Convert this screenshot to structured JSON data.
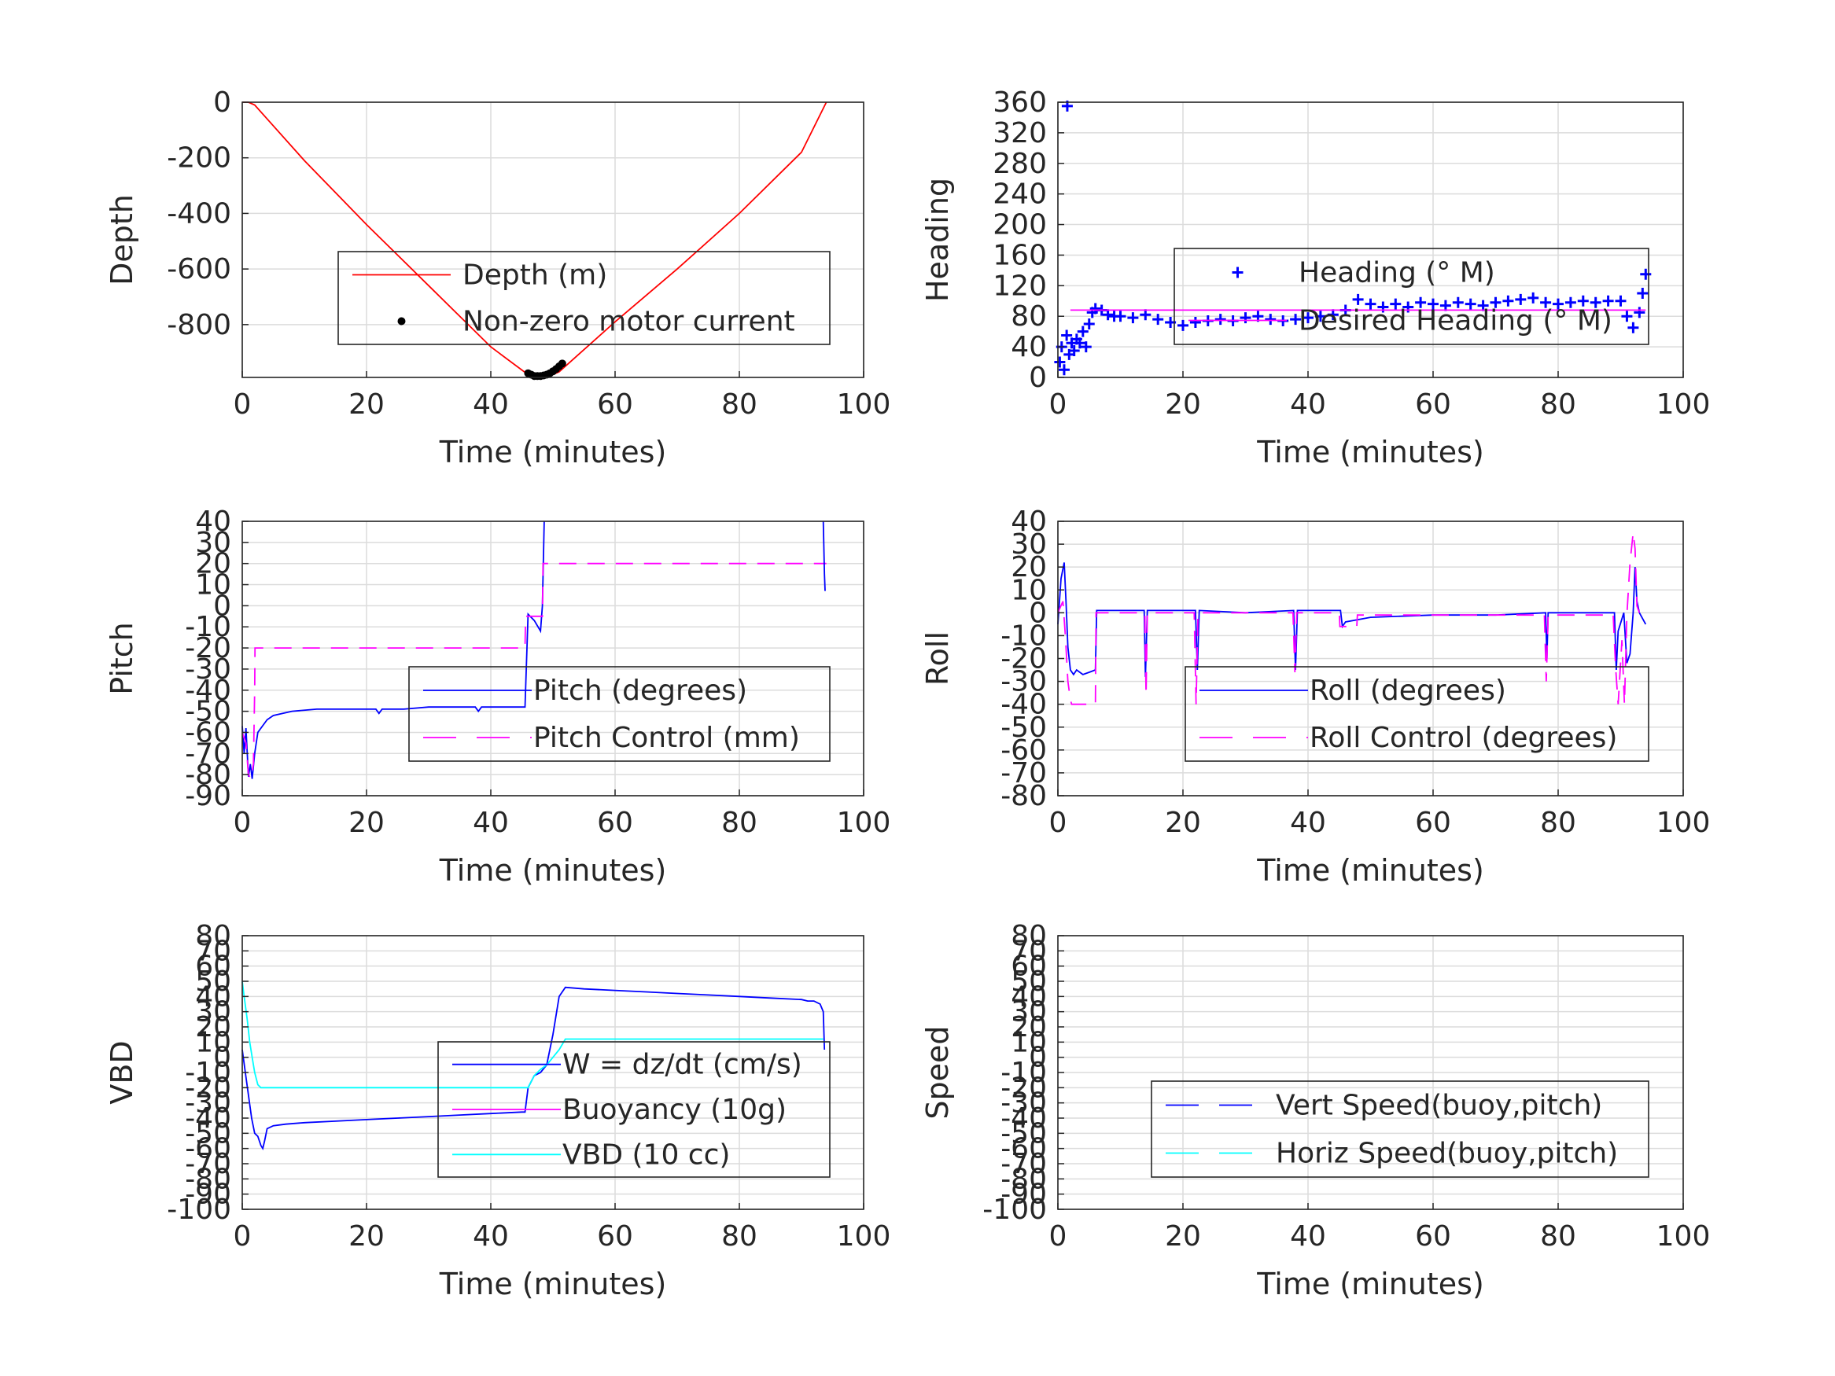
{
  "chart_data": [
    {
      "type": "line",
      "title": "",
      "xlabel": "Time (minutes)",
      "ylabel": "Depth",
      "xlim": [
        0,
        100
      ],
      "ylim": [
        -990,
        0
      ],
      "x_ticks": [
        0,
        20,
        40,
        60,
        80,
        100
      ],
      "y_ticks": [
        0,
        -200,
        -400,
        -600,
        -800
      ],
      "grid": true,
      "legend_position": "center-right",
      "series": [
        {
          "name": "Depth (m)",
          "style": "line",
          "color": "#ff0000",
          "x": [
            0,
            1,
            2,
            4,
            10,
            20,
            30,
            40,
            46,
            47,
            49,
            51,
            54,
            60,
            70,
            80,
            90,
            94
          ],
          "y": [
            0,
            0,
            -10,
            -60,
            -210,
            -440,
            -660,
            -880,
            -980,
            -990,
            -990,
            -970,
            -910,
            -790,
            -600,
            -400,
            -180,
            0
          ]
        },
        {
          "name": "Non-zero motor current",
          "style": "dot",
          "color": "#000000",
          "x": [
            46,
            46.5,
            47,
            47.5,
            48,
            48.5,
            49,
            49.5,
            50,
            50.5,
            51,
            51.5
          ],
          "y": [
            -975,
            -980,
            -985,
            -985,
            -985,
            -983,
            -980,
            -975,
            -968,
            -960,
            -950,
            -940
          ]
        }
      ]
    },
    {
      "type": "scatter",
      "title": "",
      "xlabel": "Time (minutes)",
      "ylabel": "Heading",
      "xlim": [
        0,
        100
      ],
      "ylim": [
        0,
        360
      ],
      "x_ticks": [
        0,
        20,
        40,
        60,
        80,
        100
      ],
      "y_ticks": [
        0,
        40,
        80,
        120,
        160,
        200,
        240,
        280,
        320,
        360
      ],
      "grid": true,
      "legend_position": "center-right",
      "series": [
        {
          "name": "Heading (° M)",
          "style": "plus",
          "color": "#0000ff",
          "x": [
            0.3,
            0.6,
            1.0,
            1.4,
            1.8,
            2.2,
            2.6,
            3.0,
            3.5,
            4.0,
            4.5,
            5.0,
            5.5,
            6.0,
            7,
            8,
            9,
            10,
            12,
            14,
            16,
            18,
            20,
            22,
            24,
            26,
            28,
            30,
            32,
            34,
            36,
            38,
            40,
            42,
            44,
            46,
            48,
            50,
            52,
            54,
            56,
            58,
            60,
            62,
            64,
            66,
            68,
            70,
            72,
            74,
            76,
            78,
            80,
            82,
            84,
            86,
            88,
            90,
            91,
            92,
            93,
            93.5,
            94,
            1.5
          ],
          "y": [
            20,
            40,
            10,
            55,
            30,
            45,
            35,
            50,
            45,
            60,
            40,
            70,
            85,
            90,
            88,
            82,
            80,
            80,
            78,
            82,
            76,
            72,
            68,
            72,
            74,
            76,
            74,
            78,
            80,
            76,
            74,
            76,
            78,
            80,
            82,
            88,
            102,
            96,
            92,
            96,
            92,
            98,
            96,
            94,
            98,
            96,
            94,
            98,
            100,
            102,
            104,
            98,
            96,
            98,
            100,
            98,
            100,
            100,
            80,
            65,
            85,
            110,
            135,
            355
          ]
        },
        {
          "name": "Desired Heading (° M)",
          "style": "line",
          "color": "#ff00ff",
          "x": [
            2,
            94
          ],
          "y": [
            88,
            88
          ]
        }
      ]
    },
    {
      "type": "line",
      "title": "",
      "xlabel": "Time (minutes)",
      "ylabel": "Pitch",
      "xlim": [
        0,
        100
      ],
      "ylim": [
        -90,
        40
      ],
      "x_ticks": [
        0,
        20,
        40,
        60,
        80,
        100
      ],
      "y_ticks": [
        -90,
        -80,
        -70,
        -60,
        -50,
        -40,
        -30,
        -20,
        -10,
        0,
        10,
        20,
        30,
        40
      ],
      "grid": true,
      "legend_position": "center-right",
      "series": [
        {
          "name": "Pitch (degrees)",
          "style": "line",
          "color": "#0000ff",
          "x": [
            0,
            0.3,
            0.6,
            1.0,
            1.3,
            1.6,
            2.0,
            2.5,
            3,
            4,
            5,
            8,
            12,
            16,
            20,
            21.5,
            22,
            22.5,
            26,
            30,
            34,
            37.5,
            38,
            38.5,
            42,
            45.5,
            46,
            47,
            48,
            48.3,
            48.6
          ],
          "y": [
            -57,
            -70,
            -58,
            -81,
            -75,
            -82,
            -70,
            -60,
            -58,
            -54,
            -52,
            -50,
            -49,
            -49,
            -49,
            -49,
            -51,
            -49,
            -49,
            -48,
            -48,
            -48,
            -50,
            -48,
            -48,
            -48,
            -4,
            -7,
            -12,
            0,
            40
          ]
        },
        {
          "name": "Pitch Control (mm)",
          "style": "dashed",
          "color": "#ff00ff",
          "x": [
            0,
            0.6,
            1.0,
            1.4,
            1.8,
            2.0,
            2.05,
            45.5,
            45.6,
            47.5,
            48.3,
            48.4,
            94
          ],
          "y": [
            -60,
            -65,
            -80,
            -82,
            -75,
            -40,
            -20,
            -20,
            -5,
            -5,
            -5,
            20,
            20
          ]
        },
        {
          "name": "",
          "style": "line",
          "color": "#0000ff",
          "x": [
            93.5,
            93.7,
            93.8
          ],
          "y": [
            40,
            15,
            7
          ]
        }
      ]
    },
    {
      "type": "line",
      "title": "",
      "xlabel": "Time (minutes)",
      "ylabel": "Roll",
      "xlim": [
        0,
        100
      ],
      "ylim": [
        -80,
        40
      ],
      "x_ticks": [
        0,
        20,
        40,
        60,
        80,
        100
      ],
      "y_ticks": [
        -80,
        -70,
        -60,
        -50,
        -40,
        -30,
        -20,
        -10,
        0,
        10,
        20,
        30,
        40
      ],
      "grid": true,
      "legend_position": "bottom-right",
      "series": [
        {
          "name": "Roll (degrees)",
          "style": "line",
          "color": "#0000ff",
          "x": [
            0,
            0.5,
            1.0,
            1.3,
            1.6,
            2.0,
            2.5,
            3,
            4,
            5,
            6,
            6.2,
            10,
            13.8,
            14,
            14.3,
            20,
            22,
            22.3,
            22.6,
            30,
            37.7,
            38,
            38.3,
            45.2,
            45.5,
            46,
            50,
            60,
            70,
            78,
            78.2,
            78.4,
            85,
            89,
            89.3,
            89.6,
            90.5,
            91,
            91.5,
            92,
            92.3,
            92.6,
            93,
            94
          ],
          "y": [
            -5,
            15,
            22,
            5,
            -15,
            -25,
            -27,
            -25,
            -27,
            -26,
            -25,
            1,
            1,
            1,
            -28,
            1,
            1,
            1,
            -25,
            1,
            0,
            1,
            -25,
            1,
            1,
            -6,
            -4,
            -2,
            -1,
            -1,
            0,
            -20,
            0,
            0,
            0,
            -25,
            -8,
            0,
            -22,
            -18,
            0,
            20,
            5,
            0,
            -5
          ]
        },
        {
          "name": "Roll Control (degrees)",
          "style": "dashed",
          "color": "#ff00ff",
          "x": [
            0,
            0.8,
            1.2,
            1.6,
            2.0,
            2.2,
            6.0,
            6.1,
            13.9,
            14.1,
            14.3,
            21.8,
            22.1,
            22.4,
            37.6,
            37.9,
            38.2,
            45.0,
            45.1,
            47.8,
            47.9,
            77.8,
            78.1,
            78.4,
            88.8,
            89.2,
            89.6,
            90.2,
            90.6,
            91,
            91.5,
            92,
            92.3,
            92.6,
            93
          ],
          "y": [
            0,
            5,
            -10,
            -30,
            -38,
            -40,
            -40,
            0,
            0,
            -36,
            0,
            0,
            -40,
            0,
            0,
            -26,
            0,
            0,
            -6,
            -6,
            -1,
            -1,
            -30,
            -1,
            -1,
            -24,
            -40,
            -12,
            -40,
            -1,
            22,
            35,
            28,
            3,
            0
          ]
        }
      ]
    },
    {
      "type": "line",
      "title": "",
      "xlabel": "Time (minutes)",
      "ylabel": "VBD",
      "xlim": [
        0,
        100
      ],
      "ylim": [
        -100,
        80
      ],
      "x_ticks": [
        0,
        20,
        40,
        60,
        80,
        100
      ],
      "y_ticks": [
        -100,
        -90,
        -80,
        -70,
        -60,
        -50,
        -40,
        -30,
        -20,
        -10,
        0,
        10,
        20,
        30,
        40,
        50,
        60,
        70,
        80
      ],
      "y_tick_labels": [
        "-100",
        "-90",
        "-80",
        "-70",
        "-60",
        "-50",
        "-40",
        "-30",
        "-20",
        "-10",
        "0",
        "10",
        "20",
        "30",
        "40",
        "50",
        "60",
        "70",
        "80"
      ],
      "grid": true,
      "legend_position": "bottom-right",
      "series": [
        {
          "name": "W = dz/dt (cm/s)",
          "style": "line",
          "color": "#0000ff",
          "x": [
            0,
            0.5,
            1.0,
            1.5,
            2.0,
            2.5,
            3.0,
            3.3,
            3.6,
            4,
            5,
            7,
            10,
            15,
            20,
            25,
            30,
            35,
            40,
            45,
            45.5,
            46,
            47,
            48,
            49,
            50,
            51,
            52,
            55,
            60,
            65,
            70,
            75,
            80,
            85,
            90,
            91,
            92,
            93,
            93.5,
            93.7
          ],
          "y": [
            5,
            -10,
            -25,
            -40,
            -50,
            -52,
            -58,
            -60,
            -55,
            -47,
            -45,
            -44,
            -43,
            -42,
            -41,
            -40,
            -39,
            -38,
            -37,
            -36,
            -36,
            -20,
            -12,
            -10,
            -5,
            15,
            40,
            46,
            45,
            44,
            43,
            42,
            41,
            40,
            39,
            38,
            37,
            37,
            35,
            30,
            5
          ]
        },
        {
          "name": "Buoyancy (10g)",
          "style": "line",
          "color": "#ff00ff",
          "x": [],
          "y": []
        },
        {
          "name": "VBD (10 cc)",
          "style": "line",
          "color": "#00ffff",
          "x": [
            0,
            0.3,
            0.8,
            1.2,
            1.6,
            2.0,
            2.5,
            3,
            10,
            20,
            30,
            40,
            45,
            46,
            47,
            48,
            49,
            50,
            51,
            52,
            60,
            70,
            80,
            90,
            93.5
          ],
          "y": [
            50,
            40,
            25,
            10,
            0,
            -10,
            -18,
            -20,
            -20,
            -20,
            -20,
            -20,
            -20,
            -20,
            -12,
            -8,
            -5,
            0,
            5,
            12,
            12,
            12,
            12,
            12,
            12
          ]
        }
      ]
    },
    {
      "type": "line",
      "title": "",
      "xlabel": "Time (minutes)",
      "ylabel": "Speed",
      "xlim": [
        0,
        100
      ],
      "ylim": [
        -100,
        80
      ],
      "x_ticks": [
        0,
        20,
        40,
        60,
        80,
        100
      ],
      "y_ticks": [
        -100,
        -90,
        -80,
        -70,
        -60,
        -50,
        -40,
        -30,
        -20,
        -10,
        0,
        10,
        20,
        30,
        40,
        50,
        60,
        70,
        80
      ],
      "y_tick_labels": [
        "-100",
        "-90",
        "-80",
        "-70",
        "-60",
        "-50",
        "-40",
        "-30",
        "-20",
        "-10",
        "0",
        "10",
        "20",
        "30",
        "40",
        "50",
        "60",
        "70",
        "80"
      ],
      "grid": true,
      "legend_position": "bottom-right",
      "series": [
        {
          "name": "Vert Speed(buoy,pitch)",
          "style": "dashed",
          "color": "#0000ff",
          "x": [],
          "y": []
        },
        {
          "name": "Horiz Speed(buoy,pitch)",
          "style": "dashed",
          "color": "#00ffff",
          "x": [],
          "y": []
        }
      ]
    }
  ]
}
